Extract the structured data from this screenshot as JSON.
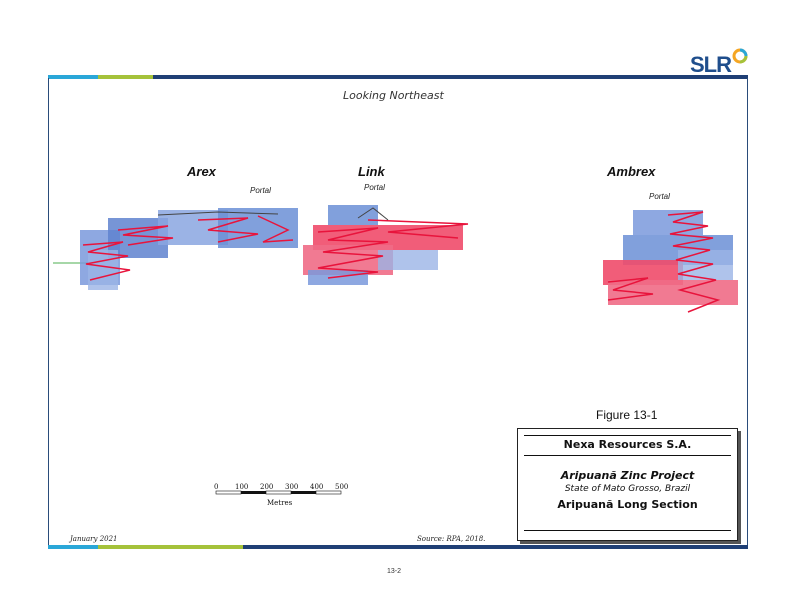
{
  "logo": {
    "text": "SLR"
  },
  "header": {
    "view_direction": "Looking Northeast"
  },
  "zones": [
    {
      "name": "Arex",
      "portal": "Portal"
    },
    {
      "name": "Link",
      "portal": "Portal"
    },
    {
      "name": "Ambrex",
      "portal": "Portal"
    }
  ],
  "scale_bar": {
    "ticks": [
      "0",
      "100",
      "200",
      "300",
      "400",
      "500"
    ],
    "unit_label": "Metres"
  },
  "figure": {
    "number": "Figure 13-1",
    "company": "Nexa Resources S.A.",
    "project": "Aripuanã Zinc Project",
    "location": "State of Mato Grosso, Brazil",
    "title": "Aripuanã Long Section"
  },
  "footer": {
    "date": "January 2021",
    "source": "Source: RPA, 2018.",
    "page_number": "13-2"
  },
  "colors": {
    "frame_blue": "#2a4c7a",
    "stope_blue": "#6b8fd6",
    "stope_red": "#e8143c",
    "bar_cyan": "#2aa7d8",
    "bar_green": "#a5c23a",
    "bar_navy": "#1f3f75"
  }
}
